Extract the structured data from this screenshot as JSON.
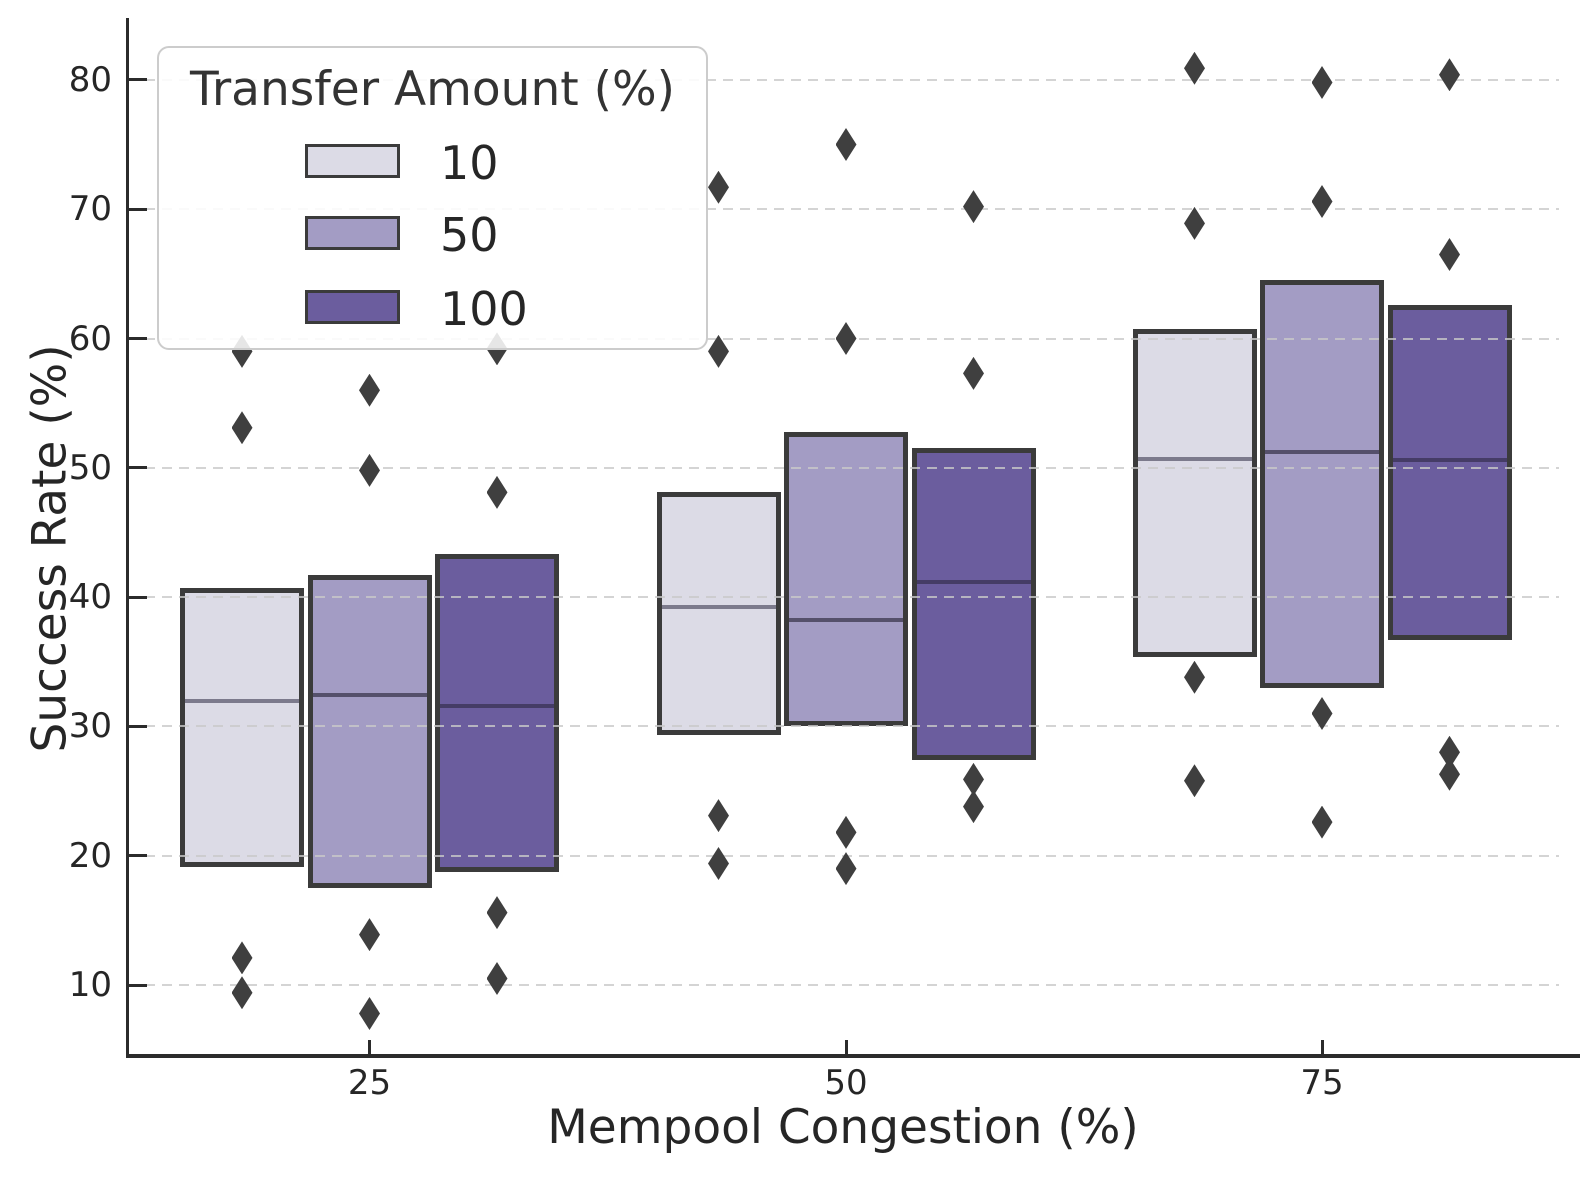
{
  "axes": {
    "ylabel": "Success Rate (%)",
    "xlabel": "Mempool Congestion (%)",
    "y_ticks": [
      10,
      20,
      30,
      40,
      50,
      60,
      70,
      80
    ],
    "x_ticks": [
      "25",
      "50",
      "75"
    ]
  },
  "legend": {
    "title": "Transfer Amount (%)",
    "entries": [
      {
        "label": "10",
        "color": "#dcdbe6"
      },
      {
        "label": "50",
        "color": "#a39cc4"
      },
      {
        "label": "100",
        "color": "#6b5d9e"
      }
    ]
  },
  "chart_data": {
    "type": "box",
    "title": "",
    "xlabel": "Mempool Congestion (%)",
    "ylabel": "Success Rate (%)",
    "categories": [
      "25",
      "50",
      "75"
    ],
    "legend_title": "Transfer Amount (%)",
    "legend_position": "upper left",
    "grid": "horizontal dashed",
    "whiskers": false,
    "ylim": [
      4.4,
      84.6
    ],
    "y_tick_values": [
      10,
      20,
      30,
      40,
      50,
      60,
      70,
      80
    ],
    "series": [
      {
        "name": "10",
        "fill": "#dcdbe6",
        "median_color": "#7c7a8c",
        "boxes": [
          {
            "category": "25",
            "q1": 19.1,
            "median": 32.0,
            "q3": 40.7,
            "outliers": [
              59.0,
              53.1,
              12.1,
              9.4
            ]
          },
          {
            "category": "50",
            "q1": 29.3,
            "median": 39.2,
            "q3": 48.1,
            "outliers": [
              71.7,
              59.0,
              23.1,
              19.4
            ]
          },
          {
            "category": "75",
            "q1": 35.4,
            "median": 50.7,
            "q3": 60.7,
            "outliers": [
              80.9,
              68.9,
              33.8,
              25.8
            ]
          }
        ]
      },
      {
        "name": "50",
        "fill": "#a39cc4",
        "median_color": "#55506b",
        "boxes": [
          {
            "category": "25",
            "q1": 17.5,
            "median": 32.4,
            "q3": 41.7,
            "outliers": [
              56.0,
              49.8,
              13.9,
              7.8
            ]
          },
          {
            "category": "50",
            "q1": 30.0,
            "median": 38.2,
            "q3": 52.8,
            "outliers": [
              75.0,
              60.0,
              21.8,
              19.0
            ]
          },
          {
            "category": "75",
            "q1": 33.0,
            "median": 51.2,
            "q3": 64.5,
            "outliers": [
              79.8,
              70.6,
              31.0,
              22.6
            ]
          }
        ]
      },
      {
        "name": "100",
        "fill": "#6b5d9e",
        "median_color": "#453c66",
        "boxes": [
          {
            "category": "25",
            "q1": 18.7,
            "median": 31.6,
            "q3": 43.3,
            "outliers": [
              59.2,
              48.1,
              15.6,
              10.5
            ]
          },
          {
            "category": "50",
            "q1": 27.4,
            "median": 41.2,
            "q3": 51.5,
            "outliers": [
              70.2,
              57.3,
              25.9,
              23.8
            ]
          },
          {
            "category": "75",
            "q1": 36.7,
            "median": 50.6,
            "q3": 62.6,
            "outliers": [
              80.4,
              66.5,
              28.0,
              26.3
            ]
          }
        ]
      }
    ]
  },
  "style": {
    "box_edge": "#3b3b3b",
    "flier_color": "#3f3f3f",
    "grid_color": "#c9c9c9",
    "spine_color": "#2b2b2b",
    "text_color": "#262626",
    "legend_border": "#cccccc"
  }
}
